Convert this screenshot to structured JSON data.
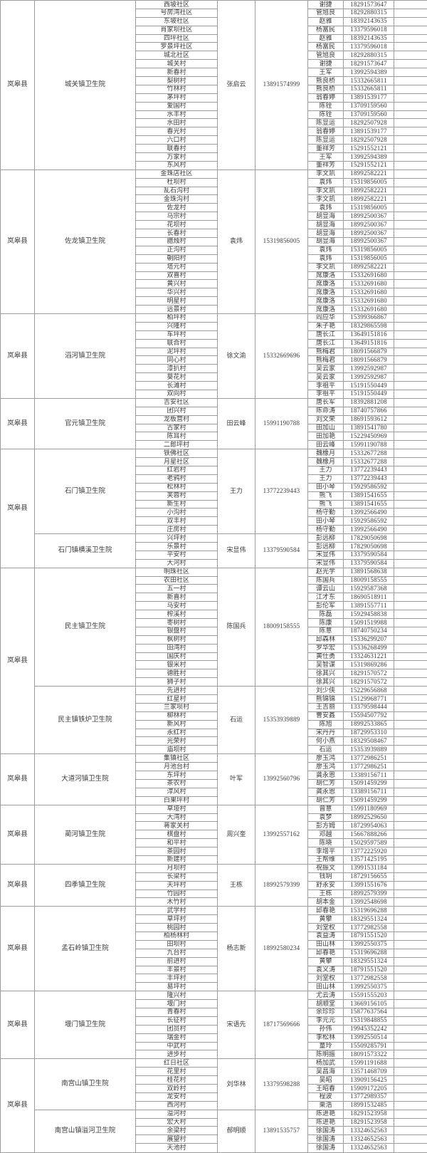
{
  "county_label": "岚皋县",
  "county_groups": [
    [
      0
    ],
    [
      1
    ],
    [
      2
    ],
    [
      3
    ],
    [
      4,
      5
    ],
    [
      6,
      7
    ],
    [
      8
    ],
    [
      9
    ],
    [
      10
    ],
    [
      11
    ],
    [
      12
    ],
    [
      13,
      14
    ]
  ],
  "blocks": [
    {
      "hospital": "城关镇卫生院",
      "contact": "张启云",
      "phone": "13891574999",
      "rows": [
        [
          "西坡社区",
          "谢捷",
          "18291573647"
        ],
        [
          "号房湾社区",
          "管旭良",
          "18292880315"
        ],
        [
          "东坡社区",
          "赵雅",
          "18392143635"
        ],
        [
          "肖家坝社区",
          "杨富民",
          "13379596018"
        ],
        [
          "四坪社区",
          "赵雅",
          "18392143635"
        ],
        [
          "罗景坪社区",
          "杨富民",
          "13379596018"
        ],
        [
          "城北社区",
          "管旭良",
          "18292880315"
        ],
        [
          "城关村",
          "谢捷",
          "18291573647"
        ],
        [
          "新春村",
          "王军",
          "13992594389"
        ],
        [
          "梨树村",
          "熊良桥",
          "15332665811"
        ],
        [
          "竹林村",
          "熊良桥",
          "15332665811"
        ],
        [
          "茅坪村",
          "翁春婷",
          "13891539177"
        ],
        [
          "爱国村",
          "陈铨",
          "13709159560"
        ],
        [
          "水丰村",
          "陈铨",
          "13709159560"
        ],
        [
          "水田村",
          "陈显运",
          "18292507928"
        ],
        [
          "春光村",
          "翁春婷",
          "13891539177"
        ],
        [
          "六口村",
          "陈显运",
          "18292507928"
        ],
        [
          "联春村",
          "董祥芳",
          "15291552121"
        ],
        [
          "万家村",
          "王军",
          "13992594389"
        ],
        [
          "东风村",
          "董祥芳",
          "15291552121"
        ]
      ]
    },
    {
      "hospital": "佐龙镇卫生院",
      "contact": "袁炜",
      "phone": "15319856005",
      "rows": [
        [
          "金珠店社区",
          "李文凯",
          "18992582221"
        ],
        [
          "杜坝村",
          "袁炜",
          "15319856005"
        ],
        [
          "乱石沟村",
          "李文凯",
          "18992582221"
        ],
        [
          "金珠沟村",
          "李文凯",
          "18992582221"
        ],
        [
          "佐龙村",
          "袁炜",
          "15319856005"
        ],
        [
          "马宗村",
          "胡显海",
          "18992500367"
        ],
        [
          "花坝村",
          "胡显海",
          "18992500367"
        ],
        [
          "长春村",
          "胡显海",
          "18992500367"
        ],
        [
          "腊烛村",
          "胡显海",
          "18992500367"
        ],
        [
          "正沟村",
          "袁炜",
          "15319856005"
        ],
        [
          "朝阳村",
          "袁炜",
          "15319856005"
        ],
        [
          "塔元村",
          "李文凯",
          "18992582221"
        ],
        [
          "双喜村",
          "席康洛",
          "15332691680"
        ],
        [
          "黄兴村",
          "席康洛",
          "15332691680"
        ],
        [
          "华兴村",
          "席康洛",
          "15332691680"
        ],
        [
          "明星村",
          "席康洛",
          "15332691680"
        ],
        [
          "远景村",
          "席康洛",
          "15332691680"
        ]
      ]
    },
    {
      "hospital": "滔河镇卫生院",
      "contact": "徐文渝",
      "phone": "15332669696",
      "rows": [
        [
          "柏坪村",
          "阎应华",
          "15399366867"
        ],
        [
          "兴隆村",
          "朱子艳",
          "18329865598"
        ],
        [
          "车坪村",
          "唐长江",
          "13649151816"
        ],
        [
          "联合村",
          "唐长江",
          "13649151816"
        ],
        [
          "泥坪村",
          "熊梅君",
          "18091566879"
        ],
        [
          "同心村",
          "熊梅君",
          "18091566879"
        ],
        [
          "漆扒村",
          "吴云家",
          "13992592987"
        ],
        [
          "葵花村",
          "吴云家",
          "13992592987"
        ],
        [
          "长滩村",
          "李祖平",
          "15191550449"
        ],
        [
          "双向村",
          "李祖平",
          "15191550449"
        ]
      ]
    },
    {
      "hospital": "官元镇卫生院",
      "contact": "田云峰",
      "phone": "15991190788",
      "rows": [
        [
          "吉安社区",
          "唐长军",
          "18392881208"
        ],
        [
          "团兴村",
          "陈命涛",
          "18740757866"
        ],
        [
          "龙板营村",
          "刘文荣",
          "18691593612"
        ],
        [
          "古家村",
          "田加山",
          "13891541780"
        ],
        [
          "陈耳村",
          "田加艳",
          "15229450969"
        ],
        [
          "二郎坪村",
          "田云峰",
          "15991190788"
        ]
      ]
    },
    {
      "hospital": "石门镇卫生院",
      "contact": "王力",
      "phone": "13772239443",
      "rows": [
        [
          "铁佛社区",
          "魏橡月",
          "15332677288"
        ],
        [
          "月星社区",
          "魏橡月",
          "15332677288"
        ],
        [
          "红岩村",
          "王力",
          "13772239443"
        ],
        [
          "老鸦村",
          "王力",
          "13772239443"
        ],
        [
          "松林村",
          "田小琴",
          "15929586592"
        ],
        [
          "芙蓉村",
          "熊飞",
          "13891541655"
        ],
        [
          "新生村",
          "熊飞",
          "13891541655"
        ],
        [
          "小沟村",
          "杨守勤",
          "13992566490"
        ],
        [
          "双丰村",
          "田小琴",
          "15929586592"
        ],
        [
          "庄房村",
          "杨守勤",
          "13992566490"
        ]
      ]
    },
    {
      "hospital": "石门镇横溪卫生院",
      "contact": "宋显伟",
      "phone": "13379590584",
      "rows": [
        [
          "兴坪村",
          "彭远柳",
          "17829050698"
        ],
        [
          "乐景村",
          "彭远柳",
          "17829050698"
        ],
        [
          "平安村",
          "宋显伟",
          "13379590584"
        ],
        [
          "大河村",
          "宋显伟",
          "13379590584"
        ]
      ]
    },
    {
      "hospital": "民主镇卫生院",
      "contact": "陈国兵",
      "phone": "18009158555",
      "rows": [
        [
          "明珠社区",
          "赵光学",
          "13891568638"
        ],
        [
          "农田社区",
          "陈国兵",
          "18009158555"
        ],
        [
          "五一村",
          "谭云山",
          "15929587368"
        ],
        [
          "新喜村",
          "江才东",
          "18690518911"
        ],
        [
          "马安村",
          "彭伦军",
          "13891557711"
        ],
        [
          "榨溪村",
          "陈磊",
          "15929458838"
        ],
        [
          "枣树村",
          "陈康",
          "15091519988"
        ],
        [
          "银盘村",
          "陈意",
          "18740750234"
        ],
        [
          "枫树村",
          "邱森林",
          "15336299207"
        ],
        [
          "田湾村",
          "罗华宏",
          "15336268499"
        ],
        [
          "国庆村",
          "黄仕勇",
          "13324631221"
        ],
        [
          "银米村",
          "吴智谋",
          "15319869286"
        ],
        [
          "德胜村",
          "徐其兴",
          "18291570572"
        ],
        [
          "狮子村",
          "徐其兴",
          "18291570572"
        ]
      ]
    },
    {
      "hospital": "民主镇铁炉卫生院",
      "contact": "石运",
      "phone": "15353939889",
      "rows": [
        [
          "先进村",
          "刘少侠",
          "15229656868"
        ],
        [
          "红星村",
          "熊锦锦",
          "15129968771"
        ],
        [
          "兰家坝村",
          "王吉丽",
          "13379598444"
        ],
        [
          "柳林村",
          "曹安鑫",
          "15594507792"
        ],
        [
          "新风村",
          "陈旭",
          "18992533865"
        ],
        [
          "永红村",
          "宋丹丹",
          "18729953310"
        ],
        [
          "光荣村",
          "何小燕",
          "18329508467"
        ],
        [
          "庙坝村",
          "石运",
          "15353939889"
        ]
      ]
    },
    {
      "hospital": "大道河镇卫生院",
      "contact": "叶军",
      "phone": "13992560796",
      "rows": [
        [
          "集镇社区",
          "廖玉鸿",
          "13772986251"
        ],
        [
          "月池台村",
          "廖玉鸿",
          "13772986251"
        ],
        [
          "东坪村",
          "龚永恩",
          "13389156711"
        ],
        [
          "茶农村",
          "胡仁芳",
          "15091459299"
        ],
        [
          "淳风村",
          "龚永恩",
          "13389156711"
        ],
        [
          "白果坪村",
          "胡仁芳",
          "15091459299"
        ]
      ]
    },
    {
      "hospital": "蔺河镇卫生院",
      "contact": "周兴奎",
      "phone": "13992557162",
      "rows": [
        [
          "草垭村",
          "曾意",
          "15991180969"
        ],
        [
          "大湾村",
          "袁梦",
          "18992529650"
        ],
        [
          "蒋家关村",
          "彭方姆",
          "18729954063"
        ],
        [
          "棋盘村",
          "邓越",
          "15667888266"
        ],
        [
          "和平村",
          "陈晓",
          "15029597589"
        ],
        [
          "茶园村",
          "李增平",
          "13772225920"
        ],
        [
          "新建村",
          "王帮维",
          "13571425195"
        ]
      ]
    },
    {
      "hospital": "四季镇卫生院",
      "contact": "王栋",
      "phone": "18992579399",
      "rows": [
        [
          "月坝村",
          "祝振文",
          "13991531184"
        ],
        [
          "长梁村",
          "钱玥",
          "18729156655"
        ],
        [
          "天坪村",
          "舒永安",
          "13991551676"
        ],
        [
          "竹园村",
          "王栋",
          "18992579399"
        ],
        [
          "木竹村",
          "胡本金",
          "13992548698"
        ]
      ]
    },
    {
      "hospital": "孟石岭镇卫生院",
      "contact": "杨志新",
      "phone": "18992580234",
      "rows": [
        [
          "武学村",
          "邱春艳",
          "15319696288"
        ],
        [
          "草坪村",
          "黄攀",
          "18329551324"
        ],
        [
          "桃园村",
          "刘堂权",
          "13772982558"
        ],
        [
          "柏杨林村",
          "袁益涛",
          "18791551520"
        ],
        [
          "田坝村",
          "田山林",
          "13992550375"
        ],
        [
          "九台村",
          "邱春艳",
          "15319696288"
        ],
        [
          "前进村",
          "黄攀",
          "18329551324"
        ],
        [
          "丰景村",
          "袁义涛",
          "18791551520"
        ],
        [
          "丰坪村",
          "刘堂权",
          "13772982558"
        ],
        [
          "易坪村",
          "田山林",
          "13992550375"
        ]
      ]
    },
    {
      "hospital": "堰门镇卫生院",
      "contact": "宋语先",
      "phone": "18717569666",
      "rows": [
        [
          "隆兴村",
          "尤云涛",
          "15591555203"
        ],
        [
          "堰门村",
          "胡顺堂",
          "13669156105"
        ],
        [
          "青春村",
          "余珍珍",
          "15877637564"
        ],
        [
          "长征村",
          "李元元",
          "15319848855"
        ],
        [
          "团员村",
          "孙伟",
          "19945352242"
        ],
        [
          "瑞金村",
          "李松林",
          "13992550514"
        ],
        [
          "中武村",
          "童玲",
          "15509285791"
        ],
        [
          "进步村",
          "陈明振",
          "18091573322"
        ]
      ]
    },
    {
      "hospital": "南宫山镇卫生院",
      "contact": "刘华林",
      "phone": "13379598288",
      "rows": [
        [
          "红日社区",
          "杨加武",
          "15991191688"
        ],
        [
          "花里村",
          "吴昌海",
          "13571468709"
        ],
        [
          "桂花村",
          "吴昭",
          "13909156425"
        ],
        [
          "双岭村",
          "王昭春",
          "15909172205"
        ],
        [
          "龙安村",
          "程波",
          "13772989357"
        ],
        [
          "西河村",
          "栗浩",
          "18991532485"
        ]
      ]
    },
    {
      "hospital": "南宫山镇溢河卫生院",
      "contact": "郝明顺",
      "phone": "13891535757",
      "rows": [
        [
          "溢河村",
          "陈进艳",
          "18291523958"
        ],
        [
          "宏大村",
          "陈进艳",
          "18291523958"
        ],
        [
          "余梁村",
          "徐国涛",
          "13324652563"
        ],
        [
          "展望村",
          "徐国涛",
          "13324652563"
        ],
        [
          "天池村",
          "徐国涛",
          "13324652563"
        ]
      ]
    }
  ]
}
